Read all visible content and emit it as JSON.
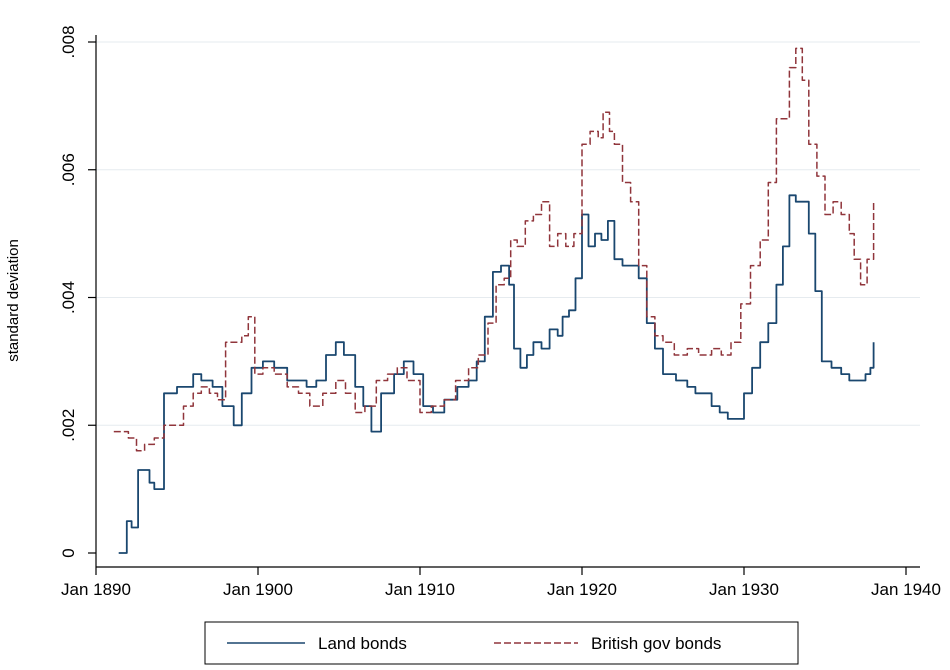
{
  "chart_data": {
    "type": "line",
    "title": "",
    "xlabel": "",
    "ylabel": "standard deviation",
    "x_ticks": [
      "Jan 1890",
      "Jan 1900",
      "Jan 1910",
      "Jan 1920",
      "Jan 1930",
      "Jan 1940"
    ],
    "y_ticks": [
      "0",
      ".002",
      ".004",
      ".006",
      ".008"
    ],
    "xlim": [
      1890,
      1940
    ],
    "ylim": [
      0,
      0.008
    ],
    "grid": "horizontal",
    "legend_position": "bottom",
    "series": [
      {
        "name": "Land bonds",
        "color": "#1a476f",
        "style": "solid",
        "x": [
          1891.4,
          1891.8,
          1891.9,
          1892.2,
          1892.6,
          1893.3,
          1893.6,
          1894.2,
          1895.0,
          1895.5,
          1896.0,
          1896.5,
          1897.2,
          1897.8,
          1898.5,
          1899.0,
          1899.6,
          1900.3,
          1901.0,
          1901.8,
          1902.4,
          1903.0,
          1903.6,
          1904.2,
          1904.8,
          1905.3,
          1906.0,
          1906.5,
          1907.0,
          1907.6,
          1908.4,
          1909.0,
          1909.6,
          1910.2,
          1910.8,
          1911.5,
          1912.3,
          1913.0,
          1913.5,
          1914.0,
          1914.5,
          1915.0,
          1915.5,
          1915.8,
          1916.2,
          1916.6,
          1917.0,
          1917.5,
          1918.0,
          1918.5,
          1918.8,
          1919.2,
          1919.6,
          1920.0,
          1920.4,
          1920.8,
          1921.2,
          1921.6,
          1922.0,
          1922.5,
          1923.0,
          1923.5,
          1924.0,
          1924.5,
          1925.0,
          1925.8,
          1926.5,
          1927.0,
          1927.5,
          1928.0,
          1928.5,
          1929.0,
          1929.5,
          1930.0,
          1930.5,
          1931.0,
          1931.5,
          1932.0,
          1932.4,
          1932.8,
          1933.2,
          1933.6,
          1934.0,
          1934.4,
          1934.8,
          1935.4,
          1936.0,
          1936.5,
          1937.0,
          1937.5,
          1937.8,
          1938.0
        ],
        "y": [
          0.0,
          0.0,
          0.0005,
          0.0004,
          0.0013,
          0.0011,
          0.001,
          0.0025,
          0.0026,
          0.0026,
          0.0028,
          0.0027,
          0.0026,
          0.0023,
          0.002,
          0.0025,
          0.0029,
          0.003,
          0.0029,
          0.0027,
          0.0027,
          0.0026,
          0.0027,
          0.0031,
          0.0033,
          0.0031,
          0.0026,
          0.0023,
          0.0019,
          0.0025,
          0.0028,
          0.003,
          0.0028,
          0.0023,
          0.0022,
          0.0024,
          0.0026,
          0.0027,
          0.003,
          0.0037,
          0.0044,
          0.0045,
          0.0042,
          0.0032,
          0.0029,
          0.0031,
          0.0033,
          0.0032,
          0.0035,
          0.0034,
          0.0037,
          0.0038,
          0.0043,
          0.0053,
          0.0048,
          0.005,
          0.0049,
          0.0052,
          0.0046,
          0.0045,
          0.0045,
          0.0043,
          0.0036,
          0.0032,
          0.0028,
          0.0027,
          0.0026,
          0.0025,
          0.0025,
          0.0023,
          0.0022,
          0.0021,
          0.0021,
          0.0025,
          0.0029,
          0.0033,
          0.0036,
          0.0042,
          0.0048,
          0.0056,
          0.0055,
          0.0055,
          0.005,
          0.0041,
          0.003,
          0.0029,
          0.0028,
          0.0027,
          0.0027,
          0.0028,
          0.0029,
          0.0033
        ]
      },
      {
        "name": "British gov bonds",
        "color": "#90353b",
        "style": "dashed",
        "x": [
          1891.1,
          1891.6,
          1892.0,
          1892.5,
          1893.0,
          1893.6,
          1894.2,
          1894.8,
          1895.4,
          1896.0,
          1896.5,
          1897.0,
          1897.5,
          1898.0,
          1898.5,
          1899.0,
          1899.4,
          1899.8,
          1900.3,
          1901.0,
          1901.8,
          1902.5,
          1903.2,
          1904.0,
          1904.8,
          1905.4,
          1906.0,
          1906.6,
          1907.3,
          1908.0,
          1908.6,
          1909.2,
          1910.0,
          1910.7,
          1911.5,
          1912.2,
          1913.0,
          1913.6,
          1914.2,
          1914.7,
          1915.2,
          1915.6,
          1916.0,
          1916.5,
          1917.0,
          1917.5,
          1918.0,
          1918.5,
          1919.0,
          1919.5,
          1920.0,
          1920.5,
          1921.0,
          1921.3,
          1921.7,
          1922.0,
          1922.5,
          1923.0,
          1923.5,
          1924.0,
          1924.5,
          1925.0,
          1925.7,
          1926.5,
          1927.2,
          1928.0,
          1928.6,
          1929.2,
          1929.8,
          1930.4,
          1931.0,
          1931.5,
          1932.0,
          1932.4,
          1932.8,
          1933.2,
          1933.6,
          1934.0,
          1934.5,
          1935.0,
          1935.5,
          1936.0,
          1936.5,
          1936.8,
          1937.2,
          1937.6,
          1938.0
        ],
        "y": [
          0.0019,
          0.0019,
          0.0018,
          0.0016,
          0.0017,
          0.0018,
          0.002,
          0.002,
          0.0023,
          0.0025,
          0.0026,
          0.0025,
          0.0024,
          0.0033,
          0.0033,
          0.0034,
          0.0037,
          0.0028,
          0.0029,
          0.0028,
          0.0026,
          0.0025,
          0.0023,
          0.0025,
          0.0027,
          0.0025,
          0.0022,
          0.0023,
          0.0027,
          0.0028,
          0.0029,
          0.0027,
          0.0022,
          0.0023,
          0.0024,
          0.0027,
          0.0029,
          0.0031,
          0.0036,
          0.0042,
          0.0043,
          0.0049,
          0.0048,
          0.0052,
          0.0053,
          0.0055,
          0.0048,
          0.005,
          0.0048,
          0.005,
          0.0064,
          0.0066,
          0.0065,
          0.0069,
          0.0066,
          0.0064,
          0.0058,
          0.0055,
          0.0045,
          0.0037,
          0.0034,
          0.0033,
          0.0031,
          0.0032,
          0.0031,
          0.0032,
          0.0031,
          0.0033,
          0.0039,
          0.0045,
          0.0049,
          0.0058,
          0.0068,
          0.0068,
          0.0076,
          0.0079,
          0.0074,
          0.0064,
          0.0059,
          0.0053,
          0.0055,
          0.0053,
          0.005,
          0.0046,
          0.0042,
          0.0046,
          0.0055
        ]
      }
    ]
  }
}
